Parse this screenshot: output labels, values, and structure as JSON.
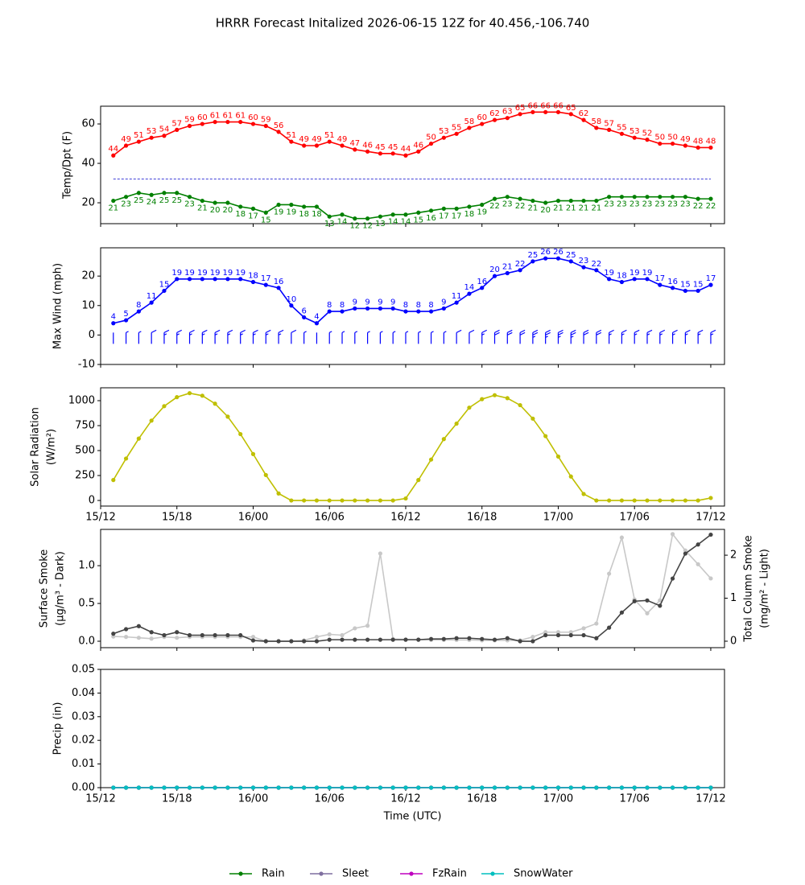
{
  "chart_data": [
    {
      "type": "line",
      "title": "HRRR Forecast Initalized 2026-06-15 12Z for 40.456,-106.740",
      "ylabel": [
        "Temp/Dpt (F)"
      ],
      "x": [
        1,
        2,
        3,
        4,
        5,
        6,
        7,
        8,
        9,
        10,
        11,
        12,
        13,
        14,
        15,
        16,
        17,
        18,
        19,
        20,
        21,
        22,
        23,
        24,
        25,
        26,
        27,
        28,
        29,
        30,
        31,
        32,
        33,
        34,
        35,
        36,
        37,
        38,
        39,
        40,
        41,
        42,
        43,
        44,
        45,
        46,
        47,
        48
      ],
      "xlim": [
        0,
        49.08
      ],
      "xticks": [
        {
          "value": 0,
          "label": "15/12"
        },
        {
          "value": 6,
          "label": "15/18"
        },
        {
          "value": 12,
          "label": "16/00"
        },
        {
          "value": 18,
          "label": "16/06"
        },
        {
          "value": 24,
          "label": "16/12"
        },
        {
          "value": 30,
          "label": "16/18"
        },
        {
          "value": 36,
          "label": "17/00"
        },
        {
          "value": 42,
          "label": "17/06"
        },
        {
          "value": 48,
          "label": "17/12"
        }
      ],
      "ylim": [
        9.4,
        69
      ],
      "yticks": [
        20,
        40,
        60
      ],
      "reference_line": {
        "value": 32,
        "color": "#0000cc",
        "style": "dashed"
      },
      "series": [
        {
          "color": "#ff0000",
          "label_position": "above",
          "values": [
            44,
            49,
            51,
            53,
            54,
            57,
            59,
            60,
            61,
            61,
            61,
            60,
            59,
            56,
            51,
            49,
            49,
            51,
            49,
            47,
            46,
            45,
            45,
            44,
            46,
            50,
            53,
            55,
            58,
            60,
            62,
            63,
            65,
            66,
            66,
            66,
            65,
            62,
            58,
            57,
            55,
            53,
            52,
            50,
            50,
            49,
            48,
            48
          ]
        },
        {
          "color": "#008000",
          "label_position": "below",
          "values": [
            21,
            23,
            25,
            24,
            25,
            25,
            23,
            21,
            20,
            20,
            18,
            17,
            15,
            19,
            19,
            18,
            18,
            13,
            14,
            12,
            12,
            13,
            14,
            14,
            15,
            16,
            17,
            17,
            18,
            19,
            22,
            23,
            22,
            21,
            20,
            21,
            21,
            21,
            21,
            23,
            23,
            23,
            23,
            23,
            23,
            23,
            22,
            22
          ]
        }
      ]
    },
    {
      "type": "line",
      "ylabel": [
        "Max Wind (mph)"
      ],
      "barbs": true,
      "x": [
        1,
        2,
        3,
        4,
        5,
        6,
        7,
        8,
        9,
        10,
        11,
        12,
        13,
        14,
        15,
        16,
        17,
        18,
        19,
        20,
        21,
        22,
        23,
        24,
        25,
        26,
        27,
        28,
        29,
        30,
        31,
        32,
        33,
        34,
        35,
        36,
        37,
        38,
        39,
        40,
        41,
        42,
        43,
        44,
        45,
        46,
        47,
        48
      ],
      "xlim": [
        0,
        49.08
      ],
      "xticks": [
        {
          "value": 0,
          "label": "15/12"
        },
        {
          "value": 6,
          "label": "15/18"
        },
        {
          "value": 12,
          "label": "16/00"
        },
        {
          "value": 18,
          "label": "16/06"
        },
        {
          "value": 24,
          "label": "16/12"
        },
        {
          "value": 30,
          "label": "16/18"
        },
        {
          "value": 36,
          "label": "17/00"
        },
        {
          "value": 42,
          "label": "17/06"
        },
        {
          "value": 48,
          "label": "17/12"
        }
      ],
      "ylim": [
        -10,
        29.6
      ],
      "yticks": [
        -10,
        0,
        10,
        20
      ],
      "series": [
        {
          "color": "#0000ff",
          "label_position": "above",
          "values": [
            4,
            5,
            8,
            11,
            15,
            19,
            19,
            19,
            19,
            19,
            19,
            18,
            17,
            16,
            10,
            6,
            4,
            8,
            8,
            9,
            9,
            9,
            9,
            8,
            8,
            8,
            9,
            11,
            14,
            16,
            20,
            21,
            22,
            25,
            26,
            26,
            25,
            23,
            22,
            19,
            18,
            19,
            19,
            17,
            16,
            15,
            15,
            17
          ]
        }
      ]
    },
    {
      "type": "line",
      "ylabel": [
        "Solar Radiation",
        "(W/m²)"
      ],
      "x": [
        1,
        2,
        3,
        4,
        5,
        6,
        7,
        8,
        9,
        10,
        11,
        12,
        13,
        14,
        15,
        16,
        17,
        18,
        19,
        20,
        21,
        22,
        23,
        24,
        25,
        26,
        27,
        28,
        29,
        30,
        31,
        32,
        33,
        34,
        35,
        36,
        37,
        38,
        39,
        40,
        41,
        42,
        43,
        44,
        45,
        46,
        47,
        48
      ],
      "xlim": [
        0,
        49.08
      ],
      "xticks": [
        {
          "value": 0,
          "label": "15/12"
        },
        {
          "value": 6,
          "label": "15/18"
        },
        {
          "value": 12,
          "label": "16/00"
        },
        {
          "value": 18,
          "label": "16/06"
        },
        {
          "value": 24,
          "label": "16/12"
        },
        {
          "value": 30,
          "label": "16/18"
        },
        {
          "value": 36,
          "label": "17/00"
        },
        {
          "value": 42,
          "label": "17/06"
        },
        {
          "value": 48,
          "label": "17/12"
        }
      ],
      "ylim": [
        -56,
        1129
      ],
      "yticks": [
        0,
        250,
        500,
        750,
        1000
      ],
      "series": [
        {
          "color": "#bfbf00",
          "values": [
            205,
            420,
            620,
            800,
            945,
            1035,
            1075,
            1050,
            970,
            840,
            665,
            465,
            255,
            70,
            0,
            0,
            0,
            0,
            0,
            0,
            0,
            0,
            0,
            20,
            205,
            410,
            615,
            770,
            930,
            1015,
            1055,
            1025,
            955,
            820,
            645,
            440,
            240,
            65,
            0,
            0,
            0,
            0,
            0,
            0,
            0,
            0,
            0,
            25
          ]
        }
      ]
    },
    {
      "type": "line",
      "ylabel": [
        "Surface Smoke",
        "(μg/m³ - Dark)"
      ],
      "y2label": [
        "Total Column Smoke",
        "(mg/m² - Light)"
      ],
      "x": [
        1,
        2,
        3,
        4,
        5,
        6,
        7,
        8,
        9,
        10,
        11,
        12,
        13,
        14,
        15,
        16,
        17,
        18,
        19,
        20,
        21,
        22,
        23,
        24,
        25,
        26,
        27,
        28,
        29,
        30,
        31,
        32,
        33,
        34,
        35,
        36,
        37,
        38,
        39,
        40,
        41,
        42,
        43,
        44,
        45,
        46,
        47,
        48
      ],
      "xlim": [
        0,
        49.08
      ],
      "xticks": [
        {
          "value": 0,
          "label": "15/12"
        },
        {
          "value": 6,
          "label": "15/18"
        },
        {
          "value": 12,
          "label": "16/00"
        },
        {
          "value": 18,
          "label": "16/06"
        },
        {
          "value": 24,
          "label": "16/12"
        },
        {
          "value": 30,
          "label": "16/18"
        },
        {
          "value": 36,
          "label": "17/00"
        },
        {
          "value": 42,
          "label": "17/06"
        },
        {
          "value": 48,
          "label": "17/12"
        }
      ],
      "ylim": [
        -0.085,
        1.48
      ],
      "yticks": [
        {
          "value": 0,
          "label": "0.0"
        },
        0.5,
        {
          "value": 1,
          "label": "1.0"
        }
      ],
      "y2lim": [
        -0.15,
        2.6
      ],
      "y2ticks": [
        0,
        1,
        2
      ],
      "series": [
        {
          "color": "#c8c8c8",
          "axis": "y2",
          "values": [
            0.11,
            0.1,
            0.08,
            0.06,
            0.1,
            0.08,
            0.1,
            0.1,
            0.1,
            0.1,
            0.1,
            0.1,
            0,
            0,
            0,
            0.02,
            0.1,
            0.16,
            0.14,
            0.3,
            0.36,
            2.04,
            0.05,
            0.04,
            0.04,
            0.03,
            0.03,
            0.03,
            0.03,
            0.02,
            0.02,
            0.02,
            0.02,
            0.1,
            0.21,
            0.21,
            0.21,
            0.3,
            0.41,
            1.57,
            2.41,
            0.97,
            0.65,
            0.95,
            2.49,
            2.11,
            1.79,
            1.46
          ]
        },
        {
          "color": "#444444",
          "values": [
            0.1,
            0.16,
            0.2,
            0.12,
            0.08,
            0.12,
            0.08,
            0.08,
            0.08,
            0.08,
            0.08,
            0.01,
            0,
            0,
            0,
            0,
            0,
            0.02,
            0.02,
            0.02,
            0.02,
            0.02,
            0.02,
            0.02,
            0.02,
            0.03,
            0.03,
            0.04,
            0.04,
            0.03,
            0.02,
            0.04,
            0,
            0,
            0.08,
            0.08,
            0.08,
            0.08,
            0.04,
            0.18,
            0.38,
            0.53,
            0.54,
            0.47,
            0.83,
            1.16,
            1.28,
            1.41
          ]
        }
      ]
    },
    {
      "type": "line",
      "ylabel": [
        "Precip (in)"
      ],
      "xlabel": "Time (UTC)",
      "x": [
        1,
        2,
        3,
        4,
        5,
        6,
        7,
        8,
        9,
        10,
        11,
        12,
        13,
        14,
        15,
        16,
        17,
        18,
        19,
        20,
        21,
        22,
        23,
        24,
        25,
        26,
        27,
        28,
        29,
        30,
        31,
        32,
        33,
        34,
        35,
        36,
        37,
        38,
        39,
        40,
        41,
        42,
        43,
        44,
        45,
        46,
        47,
        48
      ],
      "xlim": [
        0,
        49.08
      ],
      "xticks": [
        {
          "value": 0,
          "label": "15/12"
        },
        {
          "value": 6,
          "label": "15/18"
        },
        {
          "value": 12,
          "label": "16/00"
        },
        {
          "value": 18,
          "label": "16/06"
        },
        {
          "value": 24,
          "label": "16/12"
        },
        {
          "value": 30,
          "label": "16/18"
        },
        {
          "value": 36,
          "label": "17/00"
        },
        {
          "value": 42,
          "label": "17/06"
        },
        {
          "value": 48,
          "label": "17/12"
        }
      ],
      "ylim": [
        0,
        0.05
      ],
      "yticks": [
        {
          "value": 0,
          "label": "0.00"
        },
        0.01,
        0.02,
        0.03,
        0.04,
        0.05
      ],
      "legend": "bottom",
      "series": [
        {
          "name": "Rain",
          "color": "#008000",
          "values": [
            0,
            0,
            0,
            0,
            0,
            0,
            0,
            0,
            0,
            0,
            0,
            0,
            0,
            0,
            0,
            0,
            0,
            0,
            0,
            0,
            0,
            0,
            0,
            0,
            0,
            0,
            0,
            0,
            0,
            0,
            0,
            0,
            0,
            0,
            0,
            0,
            0,
            0,
            0,
            0,
            0,
            0,
            0,
            0,
            0,
            0,
            0,
            0
          ]
        },
        {
          "name": "Sleet",
          "color": "#7f6f9f",
          "values": [
            0,
            0,
            0,
            0,
            0,
            0,
            0,
            0,
            0,
            0,
            0,
            0,
            0,
            0,
            0,
            0,
            0,
            0,
            0,
            0,
            0,
            0,
            0,
            0,
            0,
            0,
            0,
            0,
            0,
            0,
            0,
            0,
            0,
            0,
            0,
            0,
            0,
            0,
            0,
            0,
            0,
            0,
            0,
            0,
            0,
            0,
            0,
            0
          ]
        },
        {
          "name": "FzRain",
          "color": "#bf00bf",
          "values": [
            0,
            0,
            0,
            0,
            0,
            0,
            0,
            0,
            0,
            0,
            0,
            0,
            0,
            0,
            0,
            0,
            0,
            0,
            0,
            0,
            0,
            0,
            0,
            0,
            0,
            0,
            0,
            0,
            0,
            0,
            0,
            0,
            0,
            0,
            0,
            0,
            0,
            0,
            0,
            0,
            0,
            0,
            0,
            0,
            0,
            0,
            0,
            0
          ]
        },
        {
          "name": "SnowWater",
          "color": "#00bfbf",
          "values": [
            0,
            0,
            0,
            0,
            0,
            0,
            0,
            0,
            0,
            0,
            0,
            0,
            0,
            0,
            0,
            0,
            0,
            0,
            0,
            0,
            0,
            0,
            0,
            0,
            0,
            0,
            0,
            0,
            0,
            0,
            0,
            0,
            0,
            0,
            0,
            0,
            0,
            0,
            0,
            0,
            0,
            0,
            0,
            0,
            0,
            0,
            0,
            0
          ]
        }
      ]
    }
  ]
}
